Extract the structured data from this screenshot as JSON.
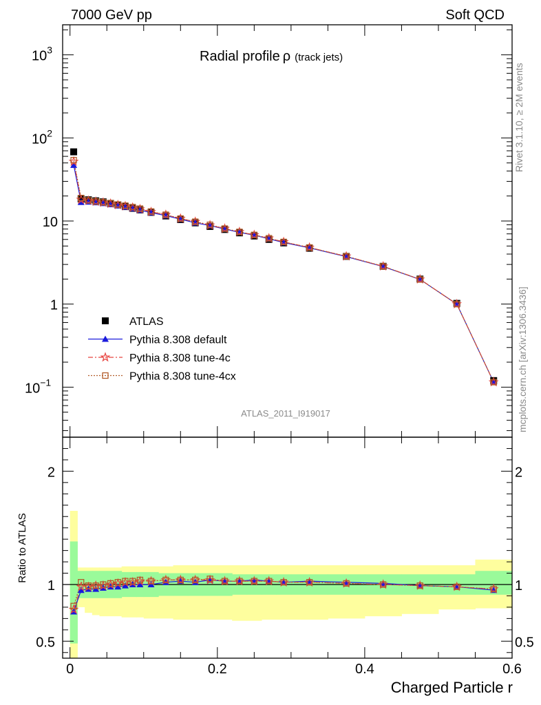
{
  "header": {
    "left": "7000 GeV pp",
    "right": "Soft QCD"
  },
  "side": {
    "rivet": "Rivet 3.1.10, ≥ 2M events",
    "ref": "mcplots.cern.ch [arXiv:1306.3436]"
  },
  "chart_data": [
    {
      "type": "line",
      "title": "Radial profile",
      "title_symbol": "ρ",
      "title_suffix": "(track jets)",
      "watermark": "ATLAS_2011_I919017",
      "ylog": true,
      "ylim": [
        0.025,
        2300
      ],
      "xlim": [
        -0.01,
        0.6
      ],
      "y_tick_labels": [
        {
          "value": 1000,
          "base": "10",
          "exp": "3"
        },
        {
          "value": 100,
          "base": "10",
          "exp": "2"
        },
        {
          "value": 10,
          "base": "10",
          "exp": ""
        },
        {
          "value": 1,
          "base": "1",
          "exp": ""
        },
        {
          "value": 0.1,
          "base": "10",
          "exp": "−1"
        }
      ],
      "legend": {
        "placement": "lower-left",
        "entries": [
          {
            "label": "ATLAS",
            "color": "#000000",
            "marker": "square"
          },
          {
            "label": "Pythia 8.308 default",
            "color": "#1a1adc",
            "marker": "triangle"
          },
          {
            "label": "Pythia 8.308 tune-4c",
            "color": "#e8433f",
            "marker": "star"
          },
          {
            "label": "Pythia 8.308 tune-4cx",
            "color": "#b25c2a",
            "marker": "open-square"
          }
        ]
      },
      "x": [
        0.005,
        0.015,
        0.025,
        0.035,
        0.045,
        0.055,
        0.065,
        0.075,
        0.085,
        0.095,
        0.11,
        0.13,
        0.15,
        0.17,
        0.19,
        0.21,
        0.23,
        0.25,
        0.27,
        0.29,
        0.325,
        0.375,
        0.425,
        0.475,
        0.525,
        0.575
      ],
      "series": [
        {
          "name": "ATLAS",
          "values": [
            68,
            18.5,
            18.0,
            17.5,
            17.0,
            16.3,
            15.6,
            14.9,
            14.2,
            13.6,
            12.7,
            11.5,
            10.4,
            9.5,
            8.6,
            7.9,
            7.2,
            6.6,
            6.0,
            5.45,
            4.7,
            3.75,
            2.85,
            2.0,
            1.02,
            0.12
          ]
        },
        {
          "name": "Pythia 8.308 default",
          "values": [
            47,
            16.8,
            17.0,
            16.7,
            16.3,
            15.8,
            15.3,
            14.7,
            14.1,
            13.5,
            12.6,
            11.6,
            10.5,
            9.5,
            8.8,
            8.0,
            7.3,
            6.75,
            6.1,
            5.5,
            4.75,
            3.72,
            2.83,
            1.98,
            1.0,
            0.115
          ]
        },
        {
          "name": "Pythia 8.308 tune-4c",
          "values": [
            52,
            18.1,
            17.6,
            17.1,
            16.7,
            16.2,
            15.6,
            15.1,
            14.5,
            13.9,
            12.9,
            11.9,
            10.7,
            9.8,
            8.9,
            8.1,
            7.4,
            6.8,
            6.2,
            5.6,
            4.8,
            3.76,
            2.85,
            1.99,
            1.0,
            0.115
          ]
        },
        {
          "name": "Pythia 8.308 tune-4cx",
          "values": [
            54,
            18.9,
            17.7,
            17.2,
            16.8,
            16.4,
            15.8,
            15.3,
            14.7,
            14.1,
            13.0,
            11.9,
            10.7,
            9.8,
            9.0,
            8.1,
            7.4,
            6.8,
            6.2,
            5.6,
            4.8,
            3.76,
            2.85,
            1.98,
            1.0,
            0.115
          ]
        }
      ]
    },
    {
      "type": "line",
      "ylabel": "Ratio to ATLAS",
      "xlabel": "Charged Particle r",
      "ylim": [
        0.35,
        2.3
      ],
      "xlim": [
        -0.01,
        0.6
      ],
      "y_tick_labels": [
        {
          "value": 2,
          "label": "2"
        },
        {
          "value": 1,
          "label": "1"
        },
        {
          "value": 0.5,
          "label": "0.5"
        }
      ],
      "x_tick_labels": [
        {
          "value": 0,
          "label": "0"
        },
        {
          "value": 0.2,
          "label": "0.2"
        },
        {
          "value": 0.4,
          "label": "0.4"
        },
        {
          "value": 0.6,
          "label": "0.6"
        }
      ],
      "bin_edges": [
        0.0,
        0.01,
        0.02,
        0.03,
        0.04,
        0.05,
        0.06,
        0.07,
        0.08,
        0.09,
        0.1,
        0.12,
        0.14,
        0.16,
        0.18,
        0.2,
        0.22,
        0.24,
        0.26,
        0.28,
        0.3,
        0.35,
        0.4,
        0.45,
        0.5,
        0.55,
        0.6
      ],
      "band_stat": {
        "lo": [
          0.48,
          0.88,
          0.88,
          0.88,
          0.88,
          0.88,
          0.88,
          0.89,
          0.89,
          0.89,
          0.89,
          0.9,
          0.9,
          0.9,
          0.9,
          0.9,
          0.91,
          0.91,
          0.91,
          0.91,
          0.91,
          0.91,
          0.91,
          0.91,
          0.91,
          0.91
        ],
        "hi": [
          1.38,
          1.12,
          1.12,
          1.12,
          1.12,
          1.12,
          1.12,
          1.11,
          1.11,
          1.11,
          1.11,
          1.1,
          1.1,
          1.1,
          1.1,
          1.1,
          1.09,
          1.09,
          1.09,
          1.09,
          1.09,
          1.09,
          1.09,
          1.09,
          1.09,
          1.12
        ]
      },
      "band_total": {
        "lo": [
          0.3,
          0.8,
          0.75,
          0.73,
          0.72,
          0.72,
          0.72,
          0.71,
          0.71,
          0.71,
          0.7,
          0.7,
          0.69,
          0.69,
          0.69,
          0.69,
          0.68,
          0.68,
          0.69,
          0.69,
          0.69,
          0.7,
          0.72,
          0.74,
          0.78,
          0.79
        ],
        "hi": [
          1.65,
          1.15,
          1.15,
          1.15,
          1.15,
          1.15,
          1.15,
          1.16,
          1.16,
          1.16,
          1.16,
          1.16,
          1.17,
          1.17,
          1.17,
          1.17,
          1.17,
          1.17,
          1.17,
          1.17,
          1.17,
          1.17,
          1.17,
          1.17,
          1.17,
          1.22
        ]
      },
      "series": [
        {
          "name": "Pythia 8.308 default",
          "values": [
            0.76,
            0.95,
            0.96,
            0.96,
            0.97,
            0.98,
            0.98,
            0.99,
            1.0,
            1.0,
            1.0,
            1.02,
            1.03,
            1.02,
            1.04,
            1.03,
            1.03,
            1.04,
            1.03,
            1.02,
            1.03,
            1.02,
            1.01,
            0.99,
            0.98,
            0.95
          ]
        },
        {
          "name": "Pythia 8.308 tune-4c",
          "values": [
            0.78,
            0.98,
            0.98,
            0.99,
            0.99,
            1.0,
            1.01,
            1.02,
            1.02,
            1.03,
            1.03,
            1.04,
            1.04,
            1.04,
            1.04,
            1.03,
            1.03,
            1.03,
            1.03,
            1.02,
            1.02,
            1.01,
            1.0,
            0.99,
            0.98,
            0.96
          ]
        },
        {
          "name": "Pythia 8.308 tune-4cx",
          "values": [
            0.81,
            1.02,
            0.99,
            0.99,
            1.0,
            1.01,
            1.02,
            1.03,
            1.03,
            1.04,
            1.03,
            1.04,
            1.04,
            1.04,
            1.05,
            1.03,
            1.03,
            1.03,
            1.03,
            1.02,
            1.02,
            1.01,
            1.0,
            0.99,
            0.98,
            0.96
          ]
        }
      ]
    }
  ]
}
